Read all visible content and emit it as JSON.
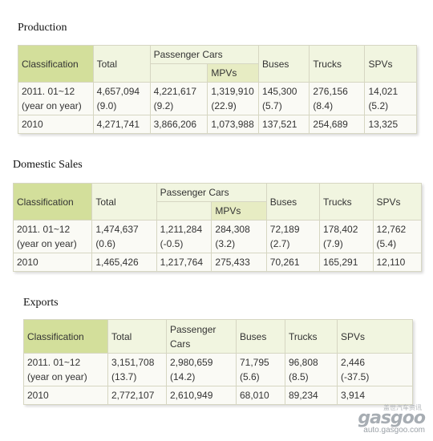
{
  "production": {
    "title": "Production",
    "headers": {
      "classification": "Classification",
      "total": "Total",
      "passenger_cars": "Passenger Cars",
      "mpvs": "MPVs",
      "buses": "Buses",
      "trucks": "Trucks",
      "spvs": "SPVs"
    },
    "row1": {
      "label1": "2011. 01~12",
      "label2": "(year on year)",
      "total": "4,657,094",
      "total_yoy": "(9.0)",
      "pc": "4,221,617",
      "pc_yoy": "(9.2)",
      "mpv": "1,319,910",
      "mpv_yoy": "(22.9)",
      "buses": "145,300",
      "buses_yoy": "(5.7)",
      "trucks": "276,156",
      "trucks_yoy": "(8.4)",
      "spvs": "14,021",
      "spvs_yoy": "(5.2)"
    },
    "row2": {
      "label": "2010",
      "total": "4,271,741",
      "pc": "3,866,206",
      "mpv": "1,073,988",
      "buses": "137,521",
      "trucks": "254,689",
      "spvs": "13,325"
    }
  },
  "domestic": {
    "title": "Domestic Sales",
    "headers": {
      "classification": "Classification",
      "total": "Total",
      "passenger_cars": "Passenger Cars",
      "mpvs": "MPVs",
      "buses": "Buses",
      "trucks": "Trucks",
      "spvs": "SPVs"
    },
    "row1": {
      "label1": "2011. 01~12",
      "label2": "(year on year)",
      "total": "1,474,637",
      "total_yoy": "(0.6)",
      "pc": "1,211,284",
      "pc_yoy": "(-0.5)",
      "mpv": "284,308",
      "mpv_yoy": "(3.2)",
      "buses": "72,189",
      "buses_yoy": "(2.7)",
      "trucks": "178,402",
      "trucks_yoy": "(7.9)",
      "spvs": "12,762",
      "spvs_yoy": "(5.4)"
    },
    "row2": {
      "label": "2010",
      "total": "1,465,426",
      "pc": "1,217,764",
      "mpv": "275,433",
      "buses": "70,261",
      "trucks": "165,291",
      "spvs": "12,110"
    }
  },
  "exports": {
    "title": "Exports",
    "headers": {
      "classification": "Classification",
      "total": "Total",
      "passenger_cars_1": "Passenger",
      "passenger_cars_2": "Cars",
      "buses": "Buses",
      "trucks": "Trucks",
      "spvs": "SPVs"
    },
    "row1": {
      "label1": "2011. 01~12",
      "label2": "(year on year)",
      "total": "3,151,708",
      "total_yoy": "(13.7)",
      "pc": "2,980,659",
      "pc_yoy": "(14.2)",
      "buses": "71,795",
      "buses_yoy": "(5.6)",
      "trucks": "96,808",
      "trucks_yoy": "(8.5)",
      "spvs": "2,446",
      "spvs_yoy": "(-37.5)"
    },
    "row2": {
      "label": "2010",
      "total": "2,772,107",
      "pc": "2,610,949",
      "buses": "68,010",
      "trucks": "89,234",
      "spvs": "3,914"
    }
  },
  "watermark": {
    "brand": "gasgoo",
    "cn": "盖世汽车资讯",
    "url": "auto.gasgoo.com"
  }
}
